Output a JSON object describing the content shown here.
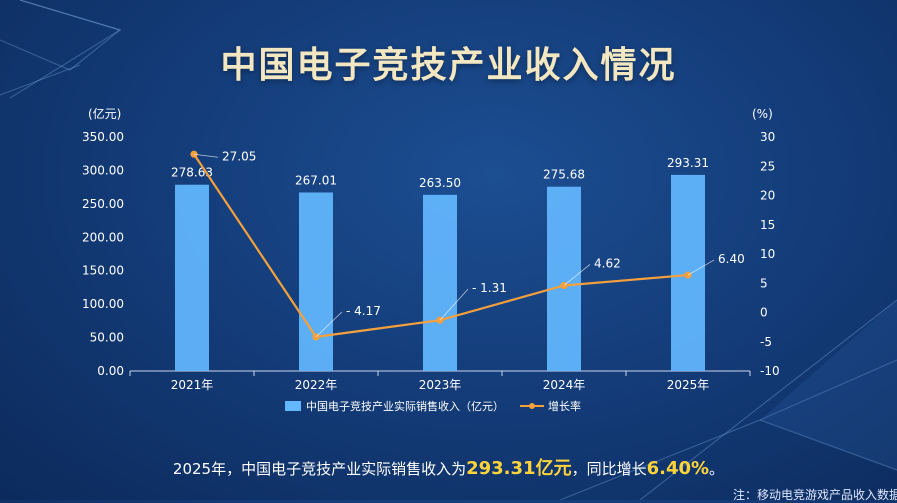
{
  "title": "中国电子竞技产业收入情况",
  "chart_data": {
    "type": "bar+line",
    "categories": [
      "2021年",
      "2022年",
      "2023年",
      "2024年",
      "2025年"
    ],
    "left_unit": "(亿元)",
    "right_unit": "(%)",
    "left_ticks": [
      "0.00",
      "50.00",
      "100.00",
      "150.00",
      "200.00",
      "250.00",
      "300.00",
      "350.00"
    ],
    "right_ticks": [
      "-10",
      "-5",
      "0",
      "5",
      "10",
      "15",
      "20",
      "25",
      "30"
    ],
    "ylim_left": [
      0,
      350
    ],
    "ylim_right": [
      -10,
      30
    ],
    "series": [
      {
        "name": "中国电子竞技产业实际销售收入（亿元）",
        "type": "bar",
        "axis": "left",
        "values": [
          278.63,
          267.01,
          263.5,
          275.68,
          293.31
        ],
        "labels": [
          "278.63",
          "267.01",
          "263.50",
          "275.68",
          "293.31"
        ],
        "color": "#63b7ff"
      },
      {
        "name": "增长率",
        "type": "line",
        "axis": "right",
        "values": [
          27.05,
          -4.17,
          -1.31,
          4.62,
          6.4
        ],
        "labels": [
          "27.05",
          "- 4.17",
          "- 1.31",
          "4.62",
          "6.40"
        ],
        "color": "#f5a03c"
      }
    ],
    "legend_position": "bottom"
  },
  "summary": {
    "prefix": "2025年，中国电子竞技产业实际销售收入为",
    "value": "293.31亿元",
    "middle": "，同比增长",
    "rate": "6.40%",
    "suffix": "。"
  },
  "footnote": "注：移动电竞游戏产品收入数据"
}
